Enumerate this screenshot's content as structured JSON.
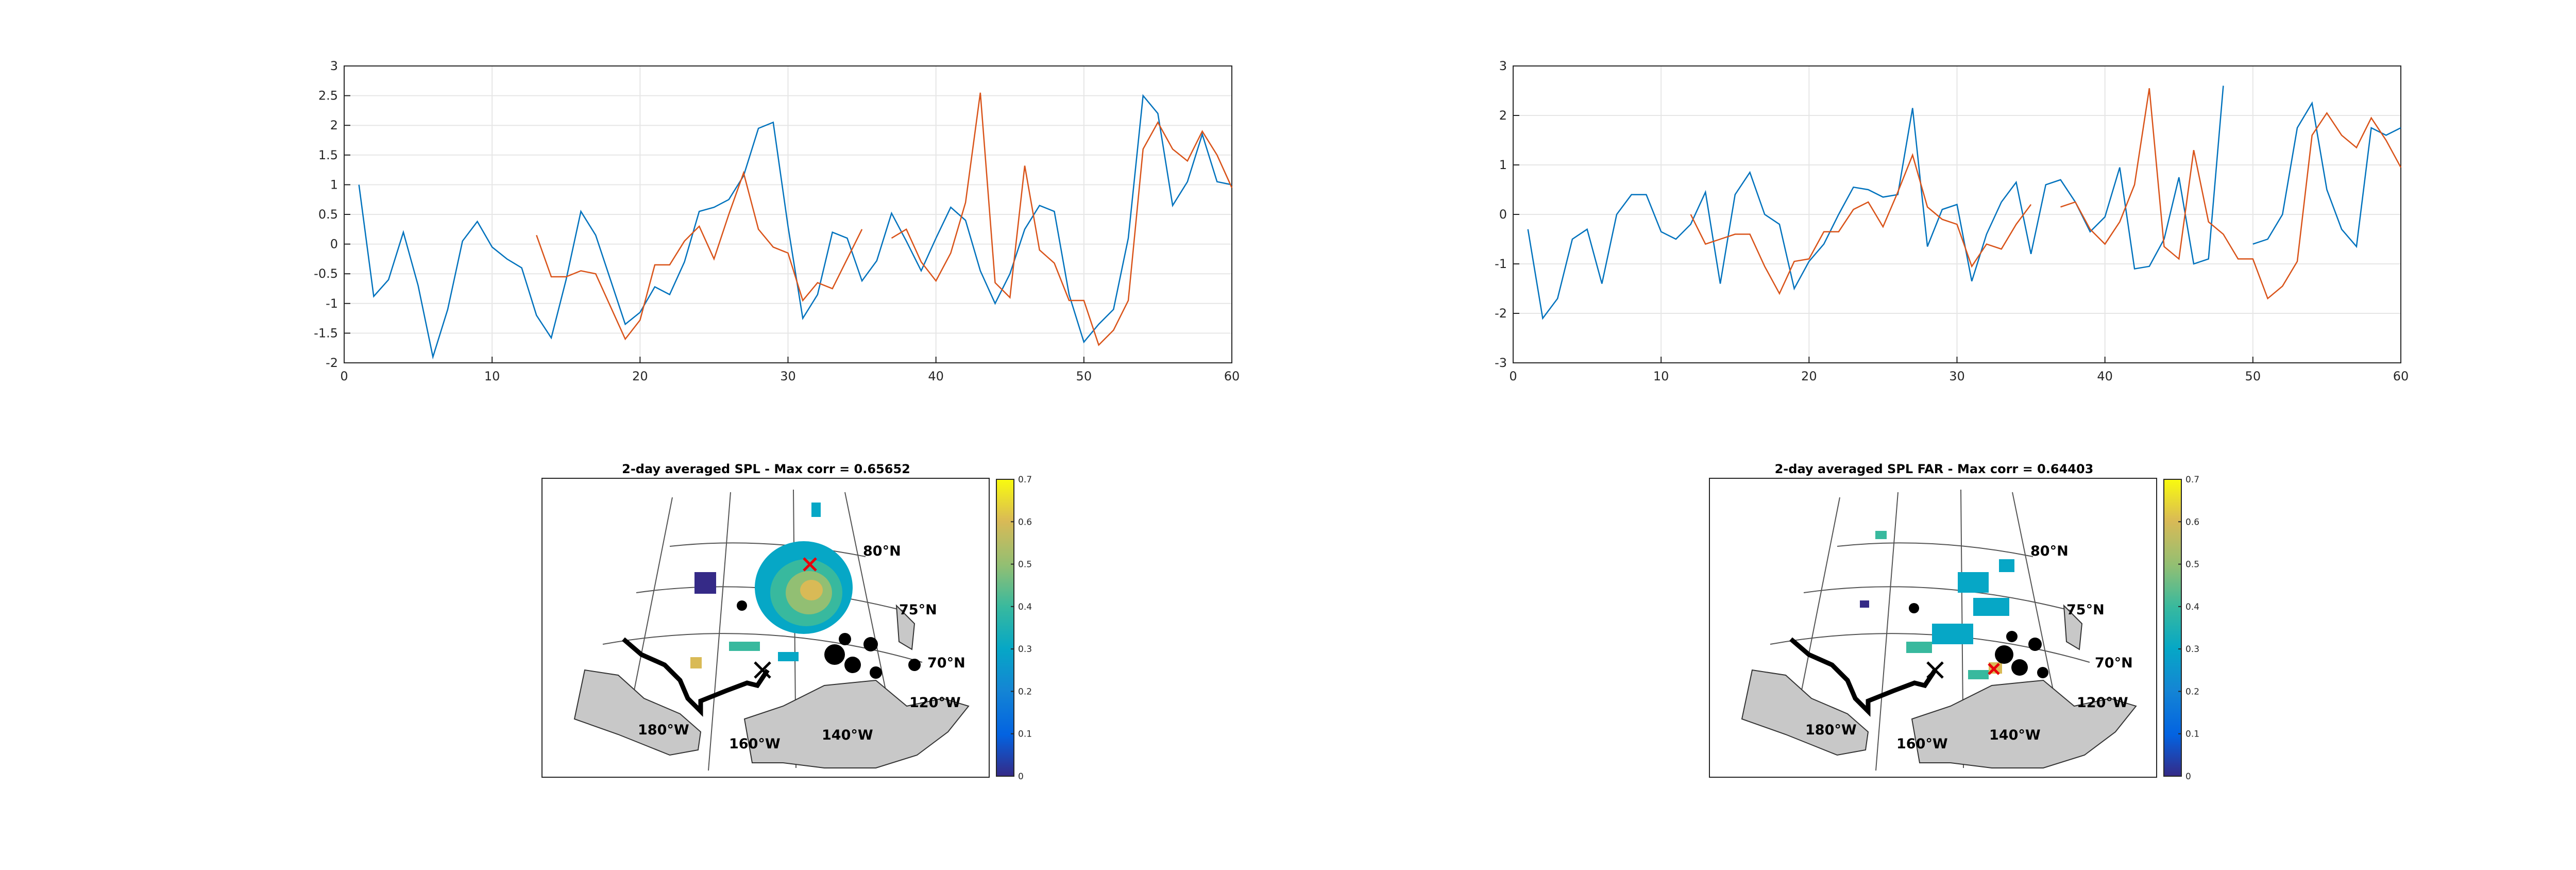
{
  "colors": {
    "series_observed": "#0072BD",
    "series_predicted": "#D95319",
    "land": "#c8c8c8",
    "coast": "#000000",
    "max_marker": "#e8000b",
    "station_marker": "#000000",
    "colormap": "parula"
  },
  "chart_data": [
    {
      "type": "line",
      "title": "",
      "xlabel": "",
      "ylabel": "",
      "xlim": [
        0,
        60
      ],
      "ylim": [
        -2,
        3
      ],
      "xticks": [
        0,
        10,
        20,
        30,
        40,
        50,
        60
      ],
      "yticks": [
        -2,
        -1.5,
        -1,
        -0.5,
        0,
        0.5,
        1,
        1.5,
        2,
        2.5,
        3
      ],
      "grid": true,
      "series": [
        {
          "x": [
            1,
            2,
            3,
            4,
            5,
            6,
            7,
            8,
            9,
            10,
            11,
            12,
            13,
            14,
            15,
            16,
            17,
            18,
            19,
            20,
            21,
            22,
            23,
            24,
            25,
            26,
            27,
            28,
            29,
            30,
            31,
            32,
            33,
            34,
            35,
            36,
            37,
            38,
            39,
            40,
            41,
            42,
            43,
            44,
            45,
            46,
            47,
            48,
            49,
            50,
            51,
            52,
            53,
            54,
            55,
            56,
            57,
            58,
            59,
            60
          ],
          "values": [
            1.0,
            -0.88,
            -0.6,
            0.2,
            -0.7,
            -1.9,
            -1.1,
            0.05,
            0.38,
            -0.05,
            -0.25,
            -0.4,
            -1.2,
            -1.58,
            -0.6,
            0.55,
            0.15,
            -0.6,
            -1.35,
            -1.15,
            -0.72,
            -0.85,
            -0.3,
            0.55,
            0.62,
            0.75,
            1.15,
            1.95,
            2.05,
            0.3,
            -1.25,
            -0.85,
            0.2,
            0.1,
            -0.62,
            -0.28,
            0.52,
            0.05,
            -0.45,
            0.1,
            0.62,
            0.4,
            -0.45,
            -1.0,
            -0.5,
            0.25,
            0.65,
            0.55,
            -0.85,
            -1.65,
            -1.35,
            -1.1,
            0.1,
            2.5,
            2.2,
            0.65,
            1.05,
            1.85,
            1.05,
            1.0
          ]
        },
        {
          "x": [
            13,
            14,
            15,
            16,
            17,
            18,
            19,
            20,
            21,
            22,
            23,
            24,
            25,
            26,
            27,
            28,
            29,
            30,
            31,
            32,
            33,
            34,
            35,
            null,
            37,
            38,
            39,
            40,
            41,
            42,
            43,
            44,
            45,
            46,
            47,
            48,
            49,
            50,
            51,
            52,
            53,
            54,
            55,
            56,
            57,
            58,
            59,
            60
          ],
          "values": [
            0.15,
            -0.55,
            -0.55,
            -0.45,
            -0.5,
            -1.05,
            -1.6,
            -1.28,
            -0.35,
            -0.35,
            0.05,
            0.3,
            -0.25,
            0.5,
            1.2,
            0.25,
            -0.05,
            -0.15,
            -0.95,
            -0.65,
            -0.75,
            -0.25,
            0.25,
            null,
            0.1,
            0.25,
            -0.3,
            -0.62,
            -0.15,
            0.7,
            2.55,
            -0.65,
            -0.9,
            1.32,
            -0.1,
            -0.32,
            -0.95,
            -0.95,
            -1.7,
            -1.45,
            -0.95,
            1.6,
            2.05,
            1.6,
            1.4,
            1.9,
            1.5,
            0.95
          ]
        }
      ]
    },
    {
      "type": "line",
      "title": "",
      "xlabel": "",
      "ylabel": "",
      "xlim": [
        0,
        60
      ],
      "ylim": [
        -3,
        3
      ],
      "xticks": [
        0,
        10,
        20,
        30,
        40,
        50,
        60
      ],
      "yticks": [
        -3,
        -2,
        -1,
        0,
        1,
        2,
        3
      ],
      "grid": true,
      "series": [
        {
          "x": [
            1,
            2,
            3,
            4,
            5,
            6,
            7,
            8,
            9,
            10,
            11,
            12,
            13,
            14,
            15,
            16,
            17,
            18,
            19,
            20,
            21,
            22,
            23,
            24,
            25,
            26,
            27,
            28,
            29,
            30,
            31,
            32,
            33,
            34,
            35,
            36,
            37,
            38,
            39,
            40,
            41,
            42,
            43,
            44,
            45,
            46,
            47,
            48,
            null,
            50,
            51,
            52,
            53,
            54,
            55,
            56,
            57,
            58,
            59,
            60
          ],
          "values": [
            -0.3,
            -2.1,
            -1.7,
            -0.5,
            -0.3,
            -1.4,
            0.0,
            0.4,
            0.4,
            -0.35,
            -0.5,
            -0.2,
            0.45,
            -1.4,
            0.4,
            0.85,
            0.0,
            -0.2,
            -1.5,
            -0.95,
            -0.6,
            0.0,
            0.55,
            0.5,
            0.35,
            0.4,
            2.15,
            -0.65,
            0.1,
            0.2,
            -1.35,
            -0.4,
            0.25,
            0.65,
            -0.8,
            0.6,
            0.7,
            0.25,
            -0.35,
            -0.05,
            0.95,
            -1.1,
            -1.05,
            -0.5,
            0.75,
            -1.0,
            -0.9,
            2.6,
            null,
            -0.6,
            -0.5,
            0.0,
            1.75,
            2.25,
            0.5,
            -0.3,
            -0.65,
            1.75,
            1.6,
            1.75
          ]
        },
        {
          "x": [
            12,
            13,
            14,
            15,
            16,
            17,
            18,
            19,
            20,
            21,
            22,
            23,
            24,
            25,
            26,
            27,
            28,
            29,
            30,
            31,
            32,
            33,
            34,
            35,
            null,
            37,
            38,
            39,
            40,
            41,
            42,
            43,
            44,
            45,
            46,
            47,
            48,
            49,
            50,
            51,
            52,
            53,
            54,
            55,
            56,
            57,
            58,
            59,
            60
          ],
          "values": [
            0.0,
            -0.6,
            -0.5,
            -0.4,
            -0.4,
            -1.05,
            -1.6,
            -0.95,
            -0.9,
            -0.35,
            -0.35,
            0.1,
            0.25,
            -0.25,
            0.45,
            1.2,
            0.15,
            -0.1,
            -0.2,
            -1.05,
            -0.6,
            -0.7,
            -0.2,
            0.2,
            null,
            0.15,
            0.25,
            -0.3,
            -0.6,
            -0.15,
            0.6,
            2.55,
            -0.65,
            -0.9,
            1.3,
            -0.15,
            -0.4,
            -0.9,
            -0.9,
            -1.7,
            -1.45,
            -0.95,
            1.6,
            2.05,
            1.6,
            1.35,
            1.95,
            1.5,
            0.95
          ]
        }
      ]
    },
    {
      "type": "heatmap",
      "title": "2-day averaged SPL - Max corr = 0.65652",
      "colorbar": {
        "range": [
          0,
          0.7
        ],
        "ticks": [
          0,
          0.1,
          0.2,
          0.3,
          0.4,
          0.5,
          0.6,
          0.7
        ]
      },
      "lat_labels": [
        "80°N",
        "75°N",
        "70°N"
      ],
      "lon_labels": [
        "120°W",
        "140°W",
        "160°W",
        "180°W"
      ]
    },
    {
      "type": "heatmap",
      "title": "2-day averaged SPL FAR - Max corr = 0.64403",
      "colorbar": {
        "range": [
          0,
          0.7
        ],
        "ticks": [
          0,
          0.1,
          0.2,
          0.3,
          0.4,
          0.5,
          0.6,
          0.7
        ]
      },
      "lat_labels": [
        "80°N",
        "75°N",
        "70°N"
      ],
      "lon_labels": [
        "120°W",
        "140°W",
        "160°W",
        "180°W"
      ]
    }
  ]
}
